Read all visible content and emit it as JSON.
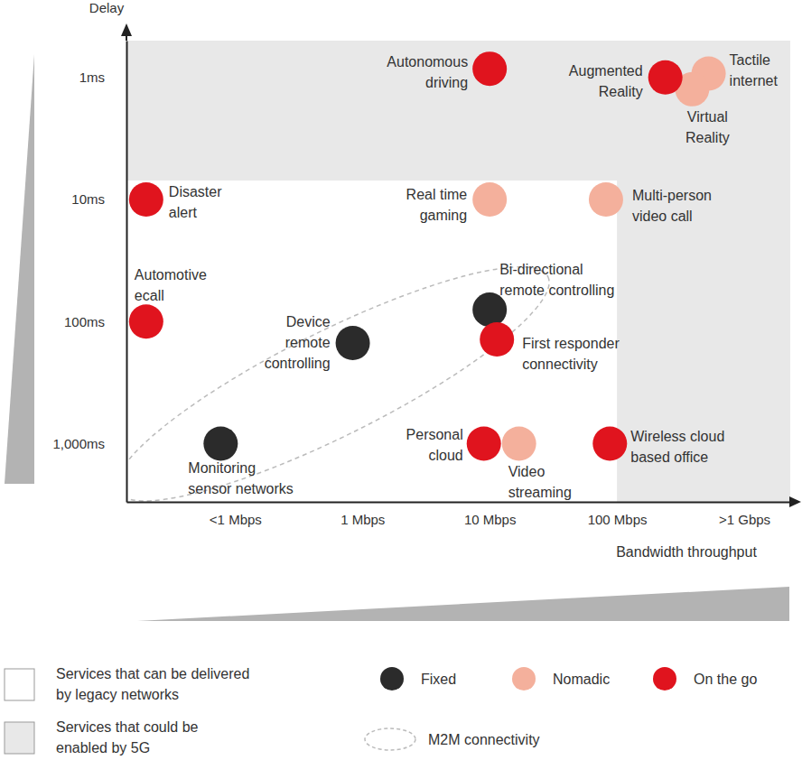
{
  "chart_data": {
    "type": "scatter",
    "x_label": "Bandwidth throughput",
    "y_label": "Delay",
    "log": true,
    "grid": false,
    "xlim": [
      0.014,
      2300
    ],
    "xticks": [
      {
        "value": 0.1,
        "label": "<1 Mbps"
      },
      {
        "value": 1,
        "label": "1 Mbps"
      },
      {
        "value": 10,
        "label": "10 Mbps"
      },
      {
        "value": 100,
        "label": "100 Mbps"
      },
      {
        "value": 1000,
        "label": ">1 Gbps"
      }
    ],
    "ylim": [
      3000,
      0.5
    ],
    "yticks": [
      {
        "value": 1,
        "label": "1ms"
      },
      {
        "value": 10,
        "label": "10ms"
      },
      {
        "value": 100,
        "label": "100ms"
      },
      {
        "value": 1000,
        "label": "1,000ms"
      }
    ],
    "series": [
      {
        "name": "Fixed",
        "color": "#2b2b2b",
        "x": [
          0.84,
          10,
          0.077
        ],
        "values": [
          150,
          80,
          1000
        ],
        "labels": [
          [
            "Device",
            "remote",
            "controlling"
          ],
          [
            "Bi-directional",
            "remote controlling"
          ],
          [
            "Monitoring",
            "sensor networks"
          ]
        ]
      },
      {
        "name": "Nomadic",
        "color": "#f4b09c",
        "x": [
          525,
          390,
          10,
          82,
          17
        ],
        "values": [
          0.93,
          1.25,
          10,
          10,
          1000
        ],
        "labels": [
          [
            "Tactile",
            "internet"
          ],
          [
            "Virtual",
            "Reality"
          ],
          [
            "Real time",
            "gaming"
          ],
          [
            "Multi-person",
            "video call"
          ],
          [
            "Video",
            "streaming"
          ]
        ]
      },
      {
        "name": "On the go",
        "color": "#e0141e",
        "x": [
          10,
          240,
          0.02,
          0.02,
          11.4,
          9,
          88
        ],
        "values": [
          0.85,
          1,
          10,
          100,
          140,
          1000,
          1000
        ],
        "labels": [
          [
            "Autonomous",
            "driving"
          ],
          [
            "Augmented",
            "Reality"
          ],
          [
            "Disaster",
            "alert"
          ],
          [
            "Automotive",
            "ecall"
          ],
          [
            "First responder",
            "connectivity"
          ],
          [
            "Personal",
            "cloud"
          ],
          [
            "Wireless cloud",
            "based office"
          ]
        ]
      }
    ],
    "areas": [
      {
        "label": [
          "Services that can be delivered",
          "by legacy networks"
        ],
        "color": "#ffffff"
      },
      {
        "label": [
          "Services that could be",
          "enabled by 5G"
        ],
        "color": "#e8e8e8",
        "bandwidth_from": 100,
        "delay_below": 7
      }
    ],
    "groups": [
      {
        "label": "M2M connectivity",
        "members": "Fixed"
      }
    ]
  }
}
